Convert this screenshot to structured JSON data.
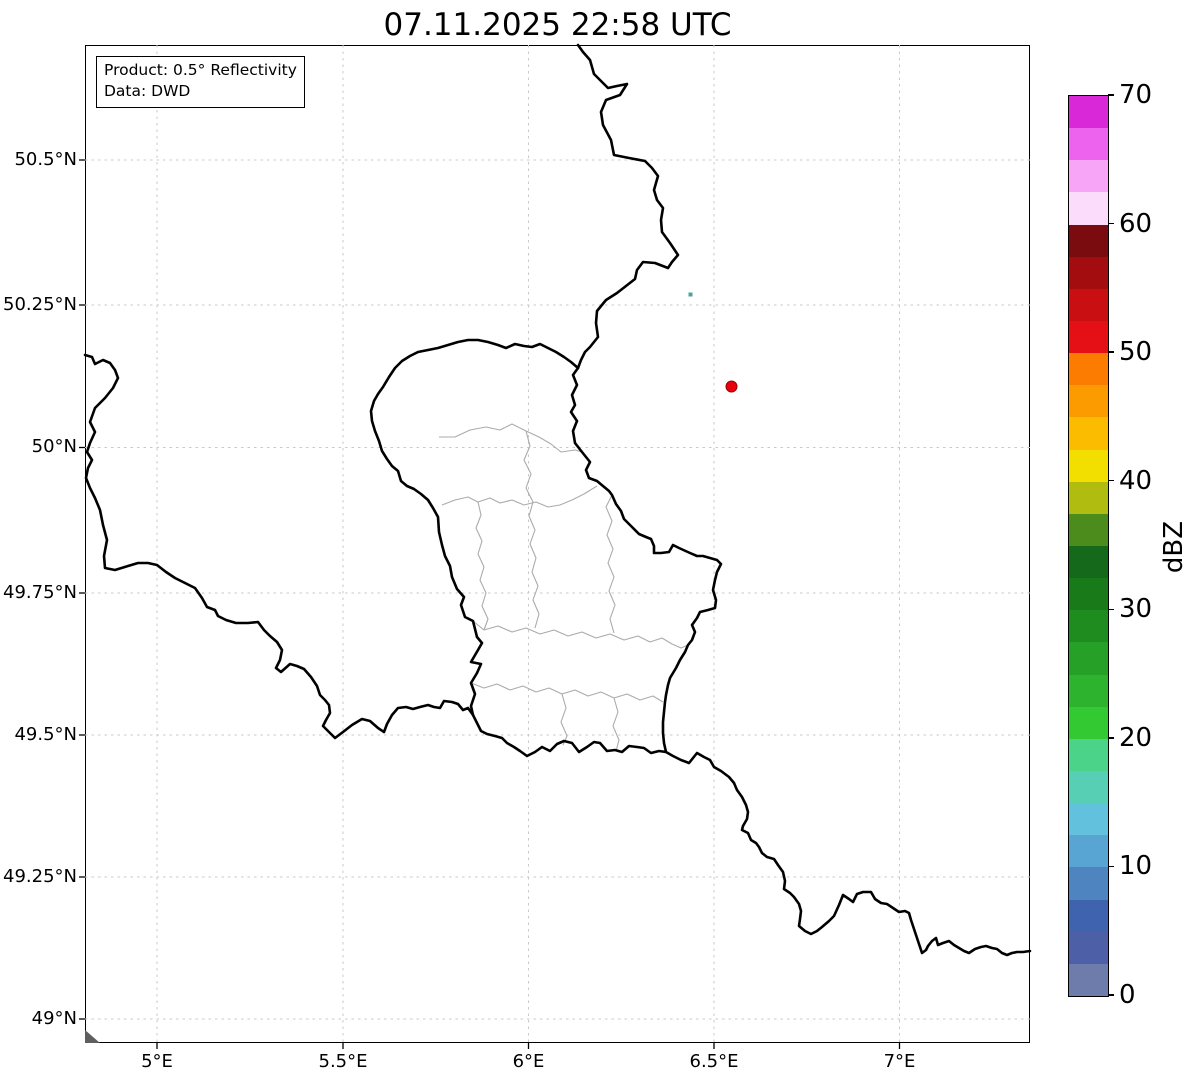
{
  "title": "07.11.2025 22:58 UTC",
  "annotation": {
    "line1": "Product: 0.5° Reflectivity",
    "line2": "Data: DWD"
  },
  "axes": {
    "x_tick_labels": [
      "5°E",
      "5.5°E",
      "6°E",
      "6.5°E",
      "7°E"
    ],
    "y_tick_labels": [
      "50.5°N",
      "50.25°N",
      "50°N",
      "49.75°N",
      "49.5°N",
      "49.25°N",
      "49°N"
    ]
  },
  "colorbar": {
    "label": "dBZ",
    "tick_labels": [
      "0",
      "10",
      "20",
      "30",
      "40",
      "50",
      "60",
      "70"
    ],
    "min": 0,
    "max": 70,
    "segment_step_dbz": 2.5,
    "segment_colors_bottom_to_top": [
      "#6e7cab",
      "#4d5fa6",
      "#3f63ae",
      "#4e85c0",
      "#58a5d3",
      "#62c2de",
      "#57cfb4",
      "#4ad389",
      "#32c932",
      "#2db32d",
      "#27a027",
      "#1e8c1e",
      "#187a18",
      "#14691a",
      "#4b8c1c",
      "#b0bc10",
      "#f2df00",
      "#fbbc00",
      "#fb9b00",
      "#fb7c00",
      "#e51015",
      "#c90f11",
      "#a30d0f",
      "#7a0c10",
      "#fbdcfb",
      "#f7a6f7",
      "#ee63ee",
      "#d828d8"
    ]
  },
  "chart_data": {
    "type": "map",
    "title": "07.11.2025 22:58 UTC",
    "map_extent": {
      "lon_min": 4.81,
      "lon_max": 7.36,
      "lat_min": 48.96,
      "lat_max": 50.7
    },
    "gridline_lons": [
      5.0,
      5.5,
      6.0,
      6.5,
      7.0
    ],
    "gridline_lats": [
      49.0,
      49.25,
      49.5,
      49.75,
      50.0,
      50.25,
      50.5
    ],
    "borders_shown": [
      "Belgium-Germany",
      "Luxembourg outline",
      "Luxembourg cantons",
      "Belgium-France",
      "France-Germany"
    ],
    "radar_echoes": [
      {
        "lon": 6.43,
        "lat": 50.27,
        "approx_dbz": 15,
        "color": "#4fa39b"
      }
    ],
    "markers": [
      {
        "shape": "circle",
        "lon": 6.55,
        "lat": 50.11,
        "fill": "#e8000d",
        "edge": "#9c0005"
      }
    ],
    "colorbar_range_dbz": [
      0,
      70
    ],
    "legend_position": "right"
  }
}
